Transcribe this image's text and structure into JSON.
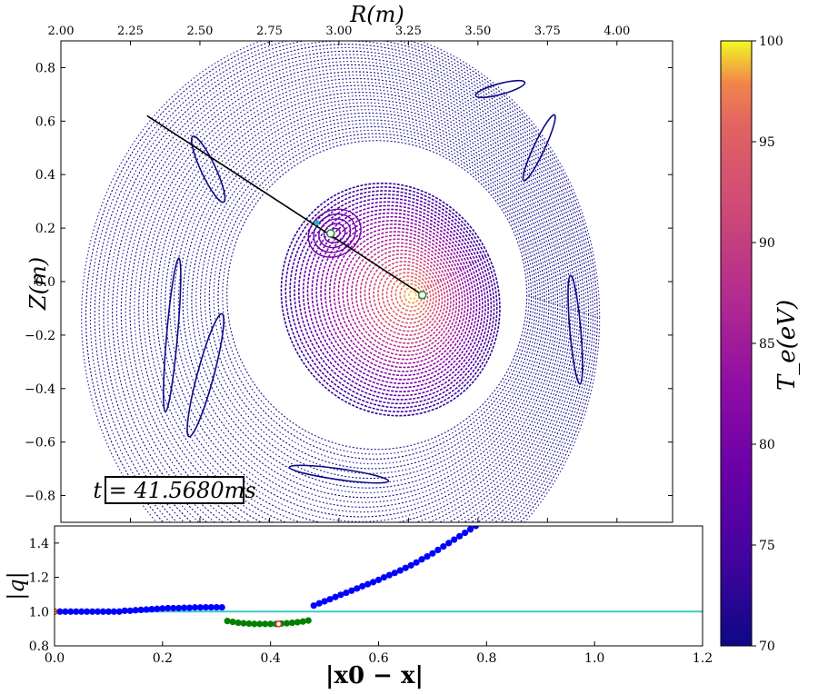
{
  "chart_data": [
    {
      "type": "scatter",
      "panel": "poincare",
      "xlabel": "R(m)",
      "ylabel": "Z(m)",
      "xlim": [
        2.0,
        4.2
      ],
      "ylim": [
        -0.9,
        0.9
      ],
      "x_ticks": [
        "2.00",
        "2.25",
        "2.50",
        "2.75",
        "3.00",
        "3.25",
        "3.50",
        "3.75",
        "4.00"
      ],
      "y_ticks": [
        "0.8",
        "0.6",
        "0.4",
        "0.2",
        "0.0",
        "−0.2",
        "−0.4",
        "−0.6",
        "−0.8"
      ],
      "time_label": "t = 41.5680ms",
      "magnetic_axis": {
        "R": 3.3,
        "Z": -0.05
      },
      "island_o_point": {
        "R": 2.97,
        "Z": 0.18
      },
      "x_point_marker": {
        "R": 2.92,
        "Z": 0.22
      },
      "chord": {
        "R": [
          2.31,
          3.3
        ],
        "Z": [
          0.62,
          -0.05
        ]
      },
      "surfaces_note": "",
      "colorbar": {
        "label": "T_e(eV)",
        "range": [
          70,
          100
        ],
        "ticks": [
          "100",
          "95",
          "90",
          "85",
          "80",
          "75",
          "70"
        ],
        "colormap": "plasma"
      }
    },
    {
      "type": "scatter",
      "panel": "q_profile",
      "xlabel": "|x0 − x|",
      "ylabel": "|q|",
      "xlim": [
        0,
        1.2
      ],
      "ylim": [
        0.8,
        1.5
      ],
      "x_ticks": [
        "0.0",
        "0.2",
        "0.4",
        "0.6",
        "0.8",
        "1.0",
        "1.2"
      ],
      "y_ticks": [
        "1.4",
        "1.2",
        "1.0",
        "0.8"
      ],
      "reference_line": {
        "y": 1.0,
        "color": "#3fc9c9"
      },
      "series": [
        {
          "color": "#0000ff",
          "x": [
            0.01,
            0.02,
            0.03,
            0.04,
            0.05,
            0.06,
            0.07,
            0.08,
            0.09,
            0.1,
            0.11,
            0.12,
            0.13,
            0.14,
            0.15,
            0.16,
            0.17,
            0.18,
            0.19,
            0.2,
            0.21,
            0.22,
            0.23,
            0.24,
            0.25,
            0.26,
            0.27,
            0.28,
            0.29,
            0.3,
            0.31
          ],
          "y": [
            1.0,
            1.0,
            1.0,
            1.0,
            1.0,
            1.0,
            1.0,
            1.0,
            1.0,
            1.0,
            1.0,
            1.0,
            1.005,
            1.005,
            1.008,
            1.01,
            1.012,
            1.014,
            1.016,
            1.018,
            1.02,
            1.02,
            1.02,
            1.022,
            1.022,
            1.024,
            1.024,
            1.025,
            1.025,
            1.025,
            1.025
          ]
        },
        {
          "color": "#008000",
          "x": [
            0.32,
            0.33,
            0.34,
            0.35,
            0.36,
            0.37,
            0.38,
            0.39,
            0.4,
            0.41,
            0.42,
            0.43,
            0.44,
            0.45,
            0.46,
            0.47
          ],
          "y": [
            0.945,
            0.94,
            0.935,
            0.932,
            0.93,
            0.928,
            0.928,
            0.928,
            0.928,
            0.928,
            0.93,
            0.932,
            0.935,
            0.938,
            0.942,
            0.948
          ]
        },
        {
          "color": "#0000ff",
          "x": [
            0.48,
            0.49,
            0.5,
            0.51,
            0.52,
            0.53,
            0.54,
            0.55,
            0.56,
            0.57,
            0.58,
            0.59,
            0.6,
            0.61,
            0.62,
            0.63,
            0.64,
            0.65,
            0.66,
            0.67,
            0.68,
            0.69,
            0.7,
            0.71,
            0.72,
            0.73
          ],
          "y": [
            1.035,
            1.048,
            1.06,
            1.072,
            1.085,
            1.098,
            1.11,
            1.122,
            1.135,
            1.148,
            1.16,
            1.172,
            1.185,
            1.2,
            1.213,
            1.226,
            1.24,
            1.255,
            1.27,
            1.287,
            1.305,
            1.322,
            1.34,
            1.36,
            1.38,
            1.4
          ]
        },
        {
          "color": "#0000ff",
          "x": [
            0.74,
            0.75,
            0.76,
            0.77,
            0.78
          ],
          "y": [
            1.42,
            1.44,
            1.46,
            1.48,
            1.5
          ]
        }
      ],
      "highlight_points": [
        {
          "x": 0.0,
          "y": 1.0,
          "color": "#e0302a"
        },
        {
          "x": 0.415,
          "y": 0.928,
          "color": "#e0302a"
        }
      ]
    }
  ]
}
